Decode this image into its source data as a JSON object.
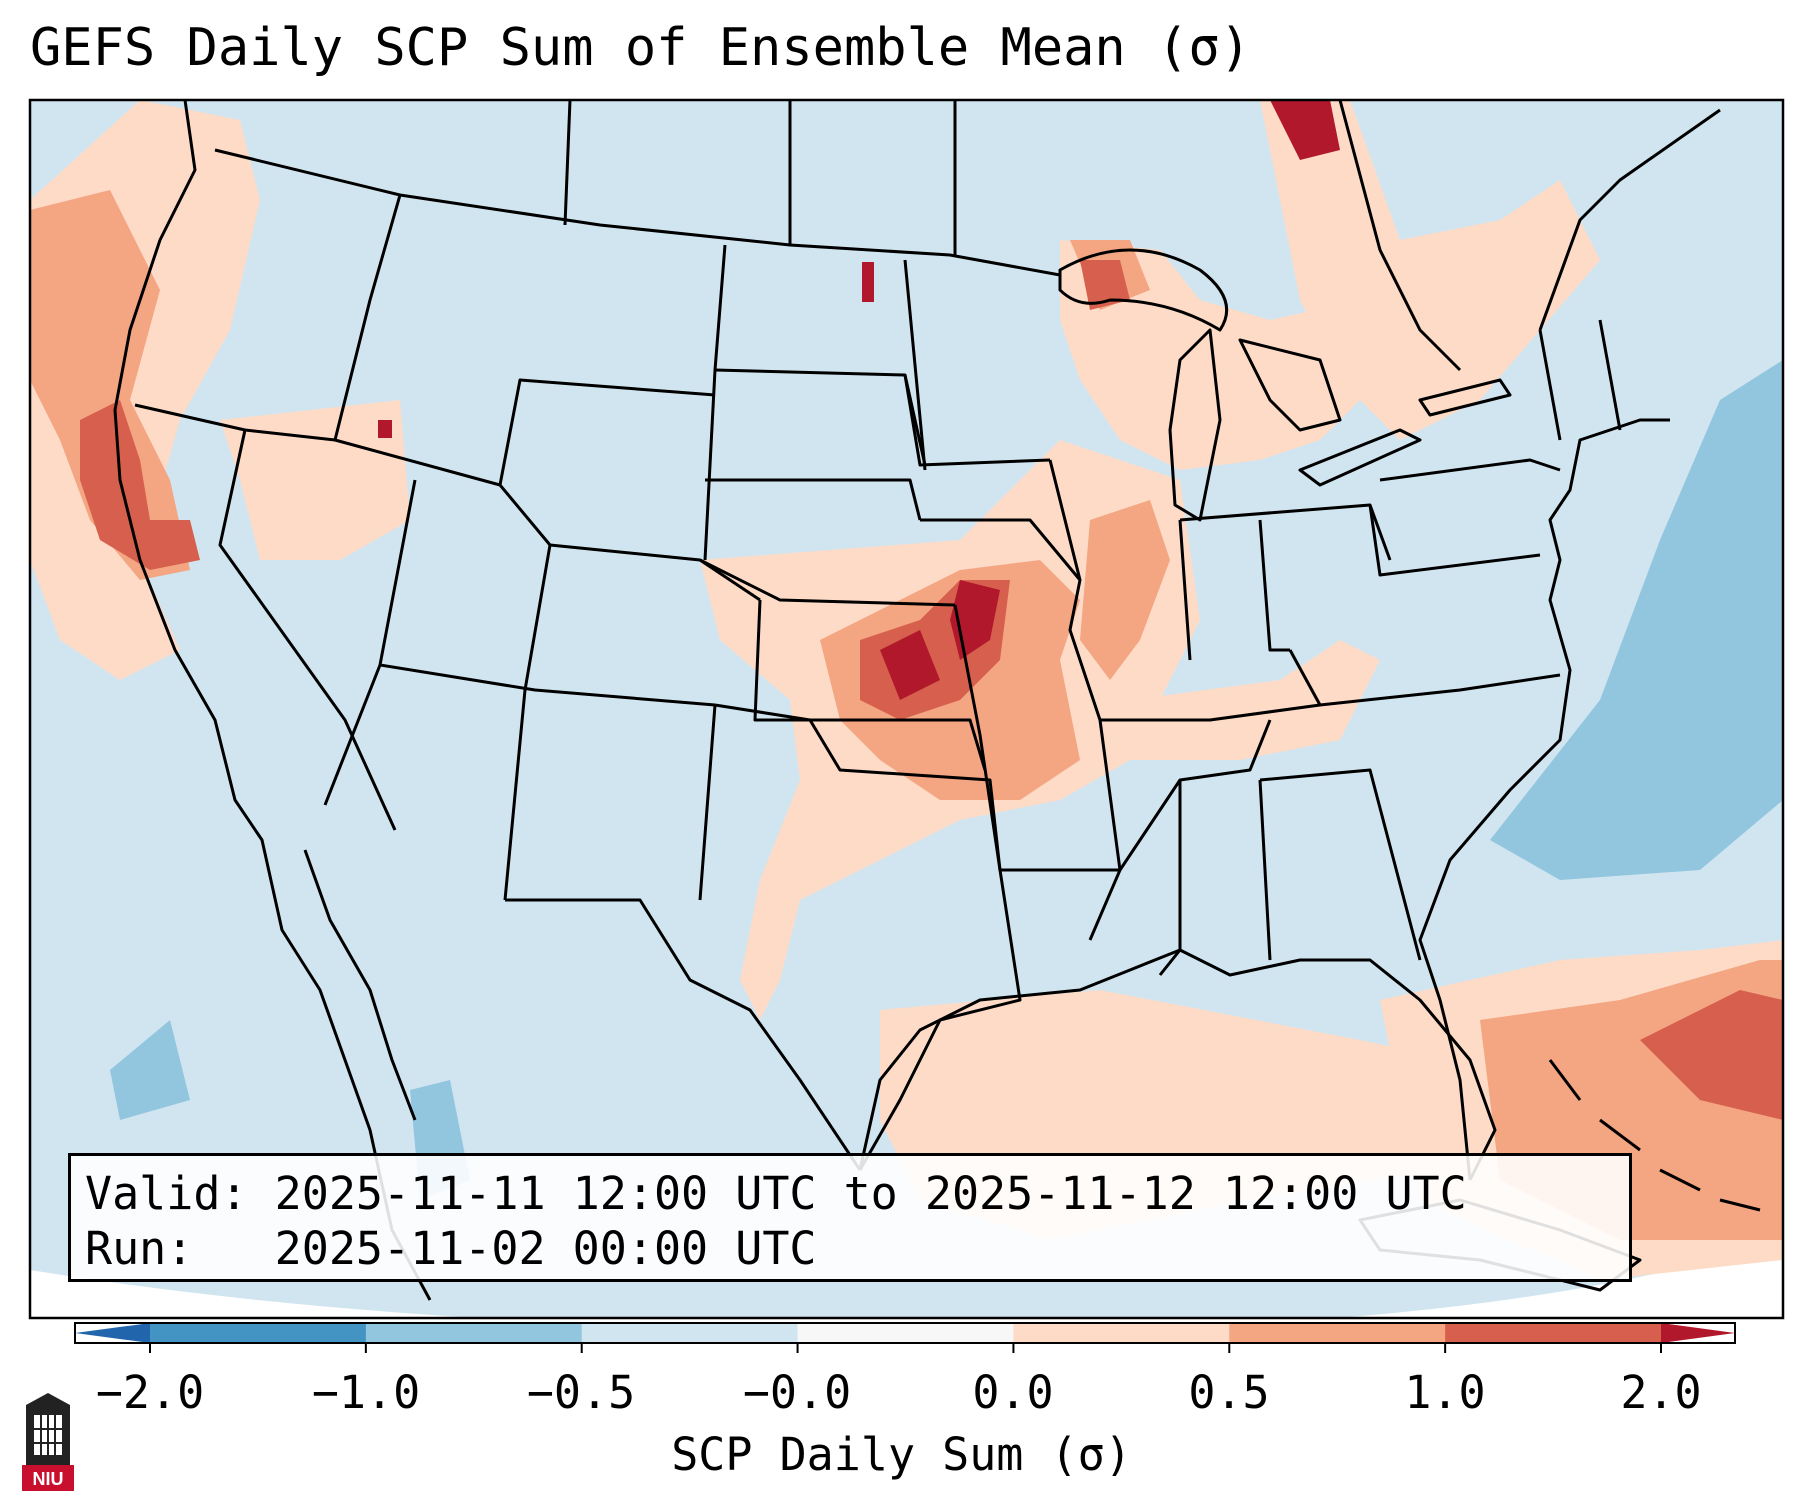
{
  "title": "GEFS Daily SCP Sum of Ensemble Mean (σ)",
  "valid_label": "Valid:",
  "valid_text": "2025-11-11 12:00 UTC to 2025-11-12 12:00 UTC",
  "run_label": "Run:",
  "run_text": "2025-11-02 00:00 UTC",
  "colorbar": {
    "label": "SCP Daily Sum (σ)",
    "ticks": [
      "−2.0",
      "−1.0",
      "−0.5",
      "−0.0",
      "0.0",
      "0.5",
      "1.0",
      "2.0"
    ],
    "colors": [
      "#2166ac",
      "#4393c3",
      "#92c5de",
      "#d1e5f0",
      "#f7f7f7",
      "#fddbc7",
      "#f4a582",
      "#d6604d",
      "#b2182b"
    ]
  },
  "logo": {
    "text": "NIU",
    "icon": "niu-tower-icon"
  },
  "colors": {
    "ocean": "#d1e5f0",
    "light_blue": "#92c5de",
    "light_red": "#fddbc7",
    "mid_red": "#f4a582",
    "red": "#d6604d",
    "dark_red": "#b2182b"
  }
}
